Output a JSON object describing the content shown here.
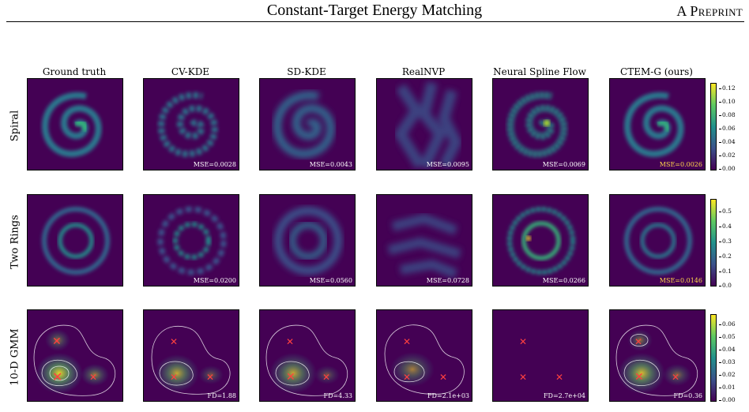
{
  "header": {
    "title": "Constant-Target Energy Matching",
    "right": "A Preprint"
  },
  "columns": [
    "Ground truth",
    "CV-KDE",
    "SD-KDE",
    "RealNVP",
    "Neural Spline Flow",
    "CTEM-G (ours)"
  ],
  "rows": [
    {
      "label": "Spiral",
      "metrics": [
        "",
        "MSE=0.0028",
        "MSE=0.0043",
        "MSE=0.0095",
        "MSE=0.0069",
        "MSE=0.0026"
      ],
      "colorbar_ticks": [
        "0.12",
        "0.10",
        "0.08",
        "0.06",
        "0.04",
        "0.02",
        "0.00"
      ]
    },
    {
      "label": "Two Rings",
      "metrics": [
        "",
        "MSE=0.0200",
        "MSE=0.0560",
        "MSE=0.0728",
        "MSE=0.0266",
        "MSE=0.0146"
      ],
      "colorbar_ticks": [
        "0.5",
        "0.4",
        "0.3",
        "0.2",
        "0.1",
        "0.0"
      ]
    },
    {
      "label": "10-D GMM",
      "metrics": [
        "",
        "FD=1.88",
        "FD=4.33",
        "FD=2.1e+03",
        "FD=2.7e+04",
        "FD=0.36"
      ],
      "colorbar_ticks": [
        "0.06",
        "0.05",
        "0.04",
        "0.03",
        "0.02",
        "0.01",
        "0.00"
      ]
    }
  ],
  "colors": {
    "background": "#440154",
    "marker": "#ff4040",
    "best_metric": "#ffd84a"
  }
}
